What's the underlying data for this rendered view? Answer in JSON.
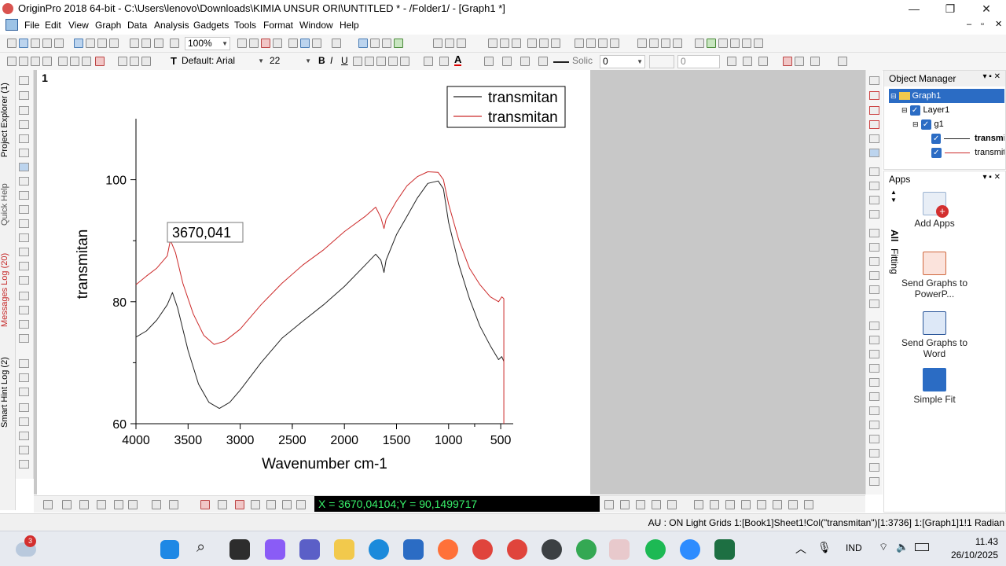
{
  "window": {
    "title": "OriginPro 2018 64-bit - C:\\Users\\lenovo\\Downloads\\KIMIA UNSUR ORI\\UNTITLED * - /Folder1/ - [Graph1 *]",
    "minimize": "—",
    "restore": "❐",
    "close": "✕"
  },
  "menu": [
    "File",
    "Edit",
    "View",
    "Graph",
    "Data",
    "Analysis",
    "Gadgets",
    "Tools",
    "Format",
    "Window",
    "Help"
  ],
  "toolbar": {
    "zoom": "100%",
    "font_name": "Default: Arial",
    "font_size": "22",
    "line_style": "Solic",
    "line_width": "0",
    "fill_value": "0"
  },
  "left_dock": {
    "tabs": [
      "Project Explorer (1)",
      "Quick Help",
      "Messages Log (20)",
      "Smart Hint Log (2)"
    ]
  },
  "graph": {
    "layer_number": "1",
    "annotation": "3670,041"
  },
  "chart_data": {
    "type": "line",
    "xlabel": "Wavenumber cm-1",
    "ylabel": "transmitan",
    "xlim": [
      4000,
      380
    ],
    "ylim": [
      60,
      110
    ],
    "x_ticks": [
      "4000",
      "3500",
      "3000",
      "2500",
      "2000",
      "1500",
      "1000",
      "500"
    ],
    "y_ticks": [
      "60",
      "80",
      "100"
    ],
    "legend_position": "top-right",
    "series": [
      {
        "name": "transmitan",
        "color": "#222222",
        "points": [
          [
            4000,
            74.2
          ],
          [
            3900,
            75.2
          ],
          [
            3800,
            77.0
          ],
          [
            3700,
            79.5
          ],
          [
            3650,
            81.5
          ],
          [
            3600,
            79.0
          ],
          [
            3500,
            72.0
          ],
          [
            3400,
            66.5
          ],
          [
            3300,
            63.5
          ],
          [
            3200,
            62.5
          ],
          [
            3100,
            63.5
          ],
          [
            3000,
            65.5
          ],
          [
            2800,
            70.0
          ],
          [
            2600,
            74.0
          ],
          [
            2400,
            76.8
          ],
          [
            2200,
            79.5
          ],
          [
            2000,
            82.5
          ],
          [
            1800,
            86.0
          ],
          [
            1700,
            87.8
          ],
          [
            1650,
            86.8
          ],
          [
            1620,
            84.8
          ],
          [
            1600,
            86.8
          ],
          [
            1500,
            91.0
          ],
          [
            1400,
            94.0
          ],
          [
            1300,
            97.0
          ],
          [
            1200,
            99.4
          ],
          [
            1100,
            99.8
          ],
          [
            1050,
            98.5
          ],
          [
            1000,
            93.0
          ],
          [
            900,
            86.0
          ],
          [
            800,
            80.5
          ],
          [
            700,
            76.0
          ],
          [
            600,
            72.8
          ],
          [
            520,
            70.5
          ],
          [
            490,
            71.0
          ],
          [
            470,
            70.2
          ]
        ]
      },
      {
        "name": "transmitan",
        "color": "#cc2a2a",
        "points": [
          [
            4000,
            82.8
          ],
          [
            3900,
            84.2
          ],
          [
            3800,
            85.5
          ],
          [
            3700,
            87.5
          ],
          [
            3670,
            90.1
          ],
          [
            3620,
            88.0
          ],
          [
            3550,
            83.0
          ],
          [
            3450,
            78.0
          ],
          [
            3350,
            74.5
          ],
          [
            3250,
            73.0
          ],
          [
            3150,
            73.5
          ],
          [
            3000,
            75.5
          ],
          [
            2800,
            79.5
          ],
          [
            2600,
            83.0
          ],
          [
            2400,
            86.0
          ],
          [
            2200,
            88.5
          ],
          [
            2000,
            91.5
          ],
          [
            1800,
            94.0
          ],
          [
            1700,
            95.5
          ],
          [
            1650,
            93.8
          ],
          [
            1620,
            92.0
          ],
          [
            1600,
            93.5
          ],
          [
            1500,
            96.5
          ],
          [
            1400,
            99.0
          ],
          [
            1300,
            100.5
          ],
          [
            1200,
            101.3
          ],
          [
            1100,
            101.2
          ],
          [
            1050,
            100.0
          ],
          [
            1000,
            96.0
          ],
          [
            900,
            90.0
          ],
          [
            800,
            85.5
          ],
          [
            700,
            82.8
          ],
          [
            600,
            80.8
          ],
          [
            520,
            80.0
          ],
          [
            490,
            80.8
          ],
          [
            470,
            80.5
          ]
        ]
      }
    ]
  },
  "object_manager": {
    "title": "Object Manager",
    "graph": "Graph1",
    "layer": "Layer1",
    "group": "g1",
    "plots": [
      "transmi",
      "transmit"
    ]
  },
  "apps_panel": {
    "title": "Apps",
    "side_tabs": [
      "All",
      "Fitting"
    ],
    "items": [
      "Add Apps",
      "Send Graphs to PowerP...",
      "Send Graphs to Word",
      "Simple Fit"
    ]
  },
  "coordinate_readout": "X = 3670,04104;Y = 90,1499717",
  "status": "AU : ON  Light Grids  1:[Book1]Sheet1!Col(\"transmitan\")[1:3736]  1:[Graph1]1!1  Radian",
  "taskbar": {
    "badge": "3",
    "language": "IND",
    "time": "11.43",
    "date": "26/10/2025"
  },
  "colors": {
    "accent": "#2b6cc4",
    "coordinate_text": "#38f06a",
    "series_black": "#222222",
    "series_red": "#cc2a2a"
  }
}
